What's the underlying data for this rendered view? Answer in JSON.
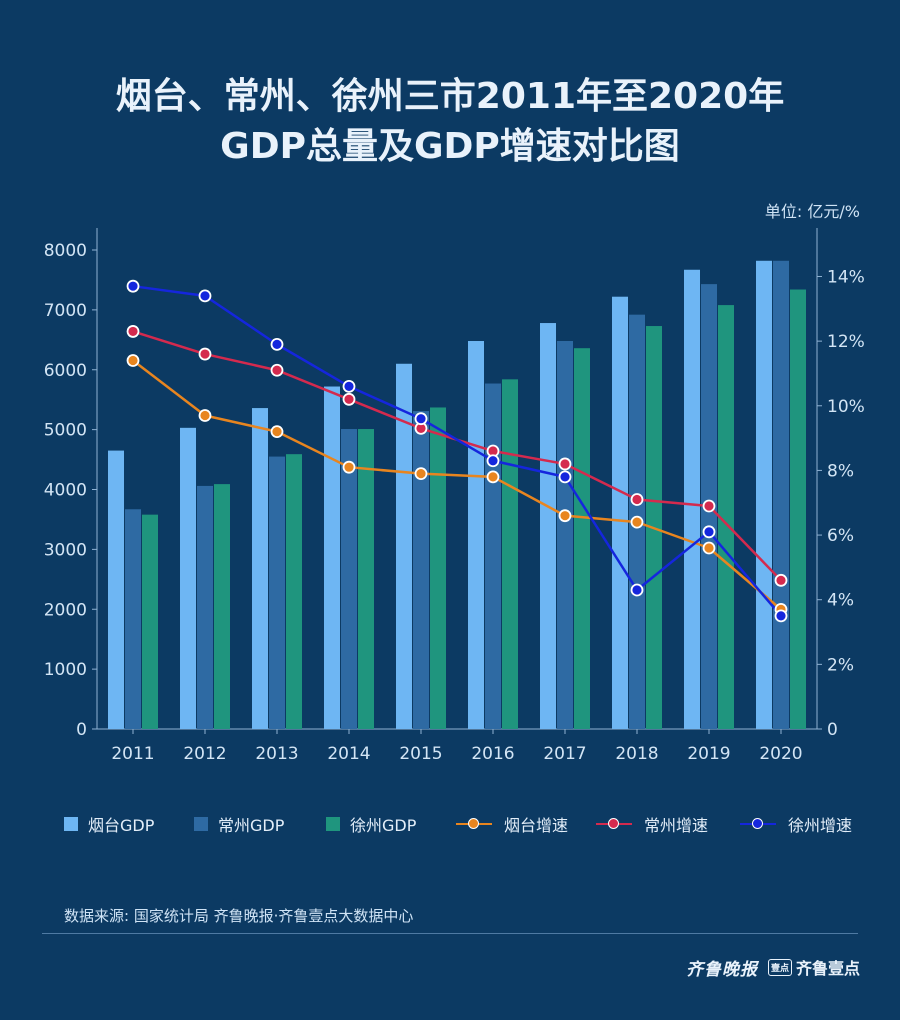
{
  "title_line1": "烟台、常州、徐州三市2011年至2020年",
  "title_line2": "GDP总量及GDP增速对比图",
  "unit": "单位: 亿元/%",
  "source": "数据来源: 国家统计局   齐鲁晚报·齐鲁壹点大数据中心",
  "brand": {
    "logo1": "齐鲁晚报",
    "badge": "壹点",
    "logo2": "齐鲁壹点"
  },
  "colors": {
    "yantai_gdp": "#6eb6f3",
    "changzhou_gdp": "#2e6aa3",
    "xuzhou_gdp": "#1f957e",
    "yantai_rate": "#e8851f",
    "changzhou_rate": "#d42a4e",
    "xuzhou_rate": "#1526dd",
    "axis": "#8fb2d3",
    "tick_text": "#d3e5f5"
  },
  "chart_data": {
    "type": "bar+line",
    "categories": [
      "2011",
      "2012",
      "2013",
      "2014",
      "2015",
      "2016",
      "2017",
      "2018",
      "2019",
      "2020"
    ],
    "y_left": {
      "ylim": [
        0,
        8000
      ],
      "ticks": [
        0,
        1000,
        2000,
        3000,
        4000,
        5000,
        6000,
        7000,
        8000
      ],
      "tick_labels": [
        "0",
        "1000",
        "2000",
        "3000",
        "4000",
        "5000",
        "6000",
        "7000",
        "8000"
      ]
    },
    "y_right": {
      "ylim": [
        0,
        15.5
      ],
      "ticks": [
        0,
        2,
        4,
        6,
        8,
        10,
        12,
        14
      ],
      "tick_labels": [
        "0",
        "2%",
        "4%",
        "6%",
        "8%",
        "10%",
        "12%",
        "14%"
      ]
    },
    "bar_series": [
      {
        "name": "烟台GDP",
        "values": [
          4650,
          5030,
          5360,
          5720,
          6100,
          6480,
          6780,
          7220,
          7670,
          7820
        ]
      },
      {
        "name": "常州GDP",
        "values": [
          3670,
          4060,
          4550,
          5010,
          5310,
          5770,
          6480,
          6920,
          7430,
          7820
        ]
      },
      {
        "name": "徐州GDP",
        "values": [
          3580,
          4090,
          4590,
          5010,
          5370,
          5840,
          6360,
          6730,
          7080,
          7340
        ]
      }
    ],
    "line_series": [
      {
        "name": "烟台增速",
        "values": [
          11.4,
          9.7,
          9.2,
          8.1,
          7.9,
          7.8,
          6.6,
          6.4,
          5.6,
          3.7
        ]
      },
      {
        "name": "常州增速",
        "values": [
          12.3,
          11.6,
          11.1,
          10.2,
          9.3,
          8.6,
          8.2,
          7.1,
          6.9,
          4.6
        ]
      },
      {
        "name": "徐州增速",
        "values": [
          13.7,
          13.4,
          11.9,
          10.6,
          9.6,
          8.3,
          7.8,
          4.3,
          6.1,
          3.5
        ]
      }
    ],
    "legend_position": "bottom"
  }
}
